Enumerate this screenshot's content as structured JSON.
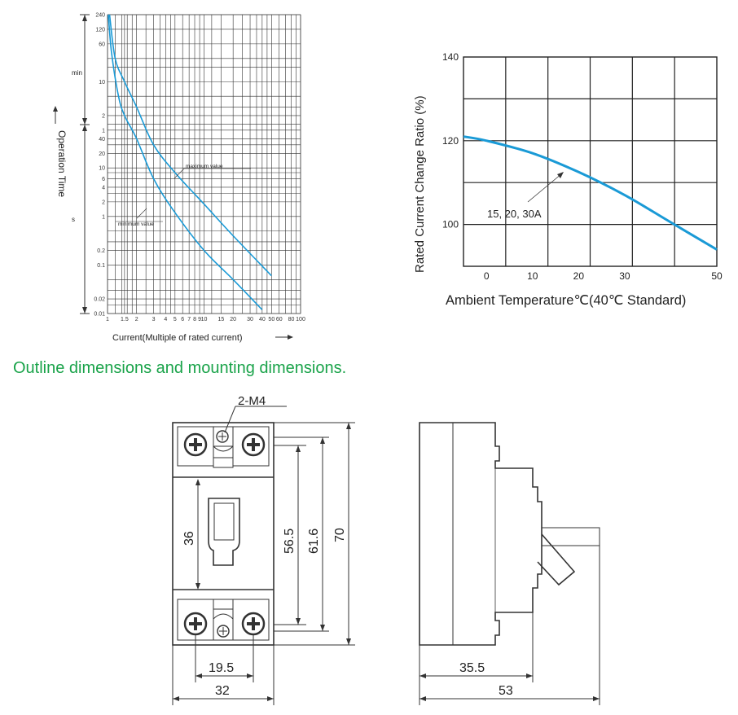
{
  "chart_data": [
    {
      "type": "line",
      "xlabel": "Current(Multiple of rated current)",
      "ylabel": "Operation Time",
      "y_unit_upper": "min",
      "y_unit_lower": "s",
      "x_ticks": [
        "1",
        "1.5",
        "2",
        "3",
        "4",
        "5",
        "6",
        "7",
        "8",
        "9",
        "10",
        "15",
        "20",
        "30",
        "40",
        "50",
        "60",
        "80",
        "100"
      ],
      "y_ticks_min": [
        "240",
        "120",
        "60",
        "10",
        "2",
        "1"
      ],
      "y_ticks_s": [
        "40",
        "20",
        "10",
        "6",
        "4",
        "2",
        "1",
        "0.2",
        "0.1",
        "0.02",
        "0.01"
      ],
      "series": [
        {
          "name": "maximum value",
          "x": [
            1.05,
            1.2,
            1.5,
            2,
            3,
            5,
            10,
            20,
            50
          ],
          "y_seconds": [
            14400,
            1800,
            600,
            180,
            30,
            8,
            1.8,
            0.4,
            0.06
          ]
        },
        {
          "name": "minimum value",
          "x": [
            1.02,
            1.1,
            1.3,
            1.5,
            2,
            3,
            5,
            10,
            20,
            40
          ],
          "y_seconds": [
            14400,
            2400,
            300,
            120,
            40,
            6,
            1.2,
            0.2,
            0.05,
            0.012
          ]
        }
      ]
    },
    {
      "type": "line",
      "xlabel": "Ambient Temperature℃(40℃ Standard)",
      "ylabel": "Rated Current Change Ratio (%)",
      "x_ticks": [
        "0",
        "10",
        "20",
        "30",
        "50"
      ],
      "y_ticks": [
        "100",
        "120",
        "140"
      ],
      "xlim": [
        -5,
        50
      ],
      "ylim": [
        90,
        140
      ],
      "annotation": "15,  20,  30A",
      "series": [
        {
          "x": [
            -5,
            0,
            10,
            20,
            30,
            40,
            50
          ],
          "y": [
            121,
            120,
            117,
            112.5,
            107,
            100.5,
            94
          ]
        }
      ]
    }
  ],
  "section_heading": "Outline dimensions and mounting dimensions.",
  "drawing": {
    "screw_label": "2-M4",
    "front_dims": {
      "d36": "36",
      "d56_5": "56.5",
      "d61_6": "61.6",
      "d70": "70",
      "d19_5": "19.5",
      "d32": "32"
    },
    "side_dims": {
      "d35_5": "35.5",
      "d53": "53"
    }
  },
  "colors": {
    "curve": "#1a9ad6",
    "heading": "#1aa34a",
    "line": "#333333"
  }
}
